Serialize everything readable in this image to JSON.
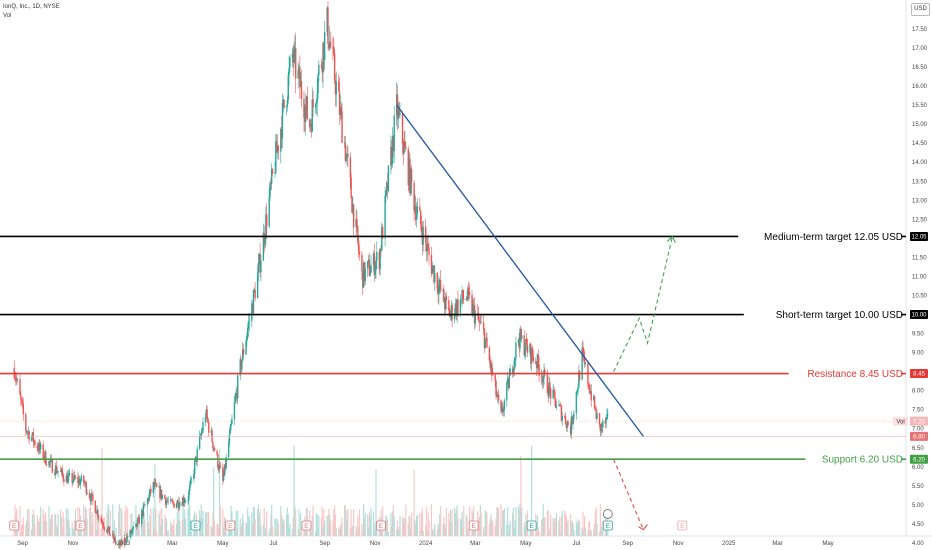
{
  "header": {
    "title": "IonQ, Inc., 1D, NYSE",
    "vol": "Vol",
    "currency": "USD"
  },
  "chart_data": {
    "type": "candlestick",
    "ylim": [
      3.7,
      18.0
    ],
    "yticks": [
      4.0,
      4.5,
      5.0,
      5.5,
      6.0,
      6.5,
      7.0,
      7.5,
      8.0,
      8.5,
      9.0,
      9.5,
      10.0,
      10.5,
      11.0,
      11.5,
      12.0,
      12.5,
      13.0,
      13.5,
      14.0,
      14.5,
      15.0,
      15.5,
      16.0,
      16.5,
      17.0,
      17.5
    ],
    "xticks": [
      {
        "label": "Sep",
        "date": "2022-09"
      },
      {
        "label": "Nov",
        "date": "2022-11"
      },
      {
        "label": "2023",
        "date": "2023-01"
      },
      {
        "label": "Mar",
        "date": "2023-03"
      },
      {
        "label": "May",
        "date": "2023-05"
      },
      {
        "label": "Jul",
        "date": "2023-07"
      },
      {
        "label": "Sep",
        "date": "2023-09"
      },
      {
        "label": "Nov",
        "date": "2023-11"
      },
      {
        "label": "2024",
        "date": "2024-01"
      },
      {
        "label": "Mar",
        "date": "2024-03"
      },
      {
        "label": "May",
        "date": "2024-05"
      },
      {
        "label": "Jul",
        "date": "2024-07"
      },
      {
        "label": "Sep",
        "date": "2024-09"
      },
      {
        "label": "Nov",
        "date": "2024-11"
      },
      {
        "label": "2025",
        "date": "2025-01"
      },
      {
        "label": "Mar",
        "date": "2025-03"
      },
      {
        "label": "May",
        "date": "2025-05"
      }
    ],
    "price_path": [
      [
        "2022-08-22",
        8.6
      ],
      [
        "2022-09-05",
        7.0
      ],
      [
        "2022-10-03",
        6.1
      ],
      [
        "2022-10-24",
        5.7
      ],
      [
        "2022-11-14",
        5.6
      ],
      [
        "2022-12-05",
        4.6
      ],
      [
        "2022-12-26",
        3.9
      ],
      [
        "2023-01-16",
        4.4
      ],
      [
        "2023-02-06",
        5.5
      ],
      [
        "2023-02-27",
        5.0
      ],
      [
        "2023-03-20",
        5.2
      ],
      [
        "2023-04-10",
        7.4
      ],
      [
        "2023-05-01",
        5.6
      ],
      [
        "2023-05-22",
        8.6
      ],
      [
        "2023-06-12",
        11.0
      ],
      [
        "2023-07-03",
        14.0
      ],
      [
        "2023-07-24",
        16.8
      ],
      [
        "2023-08-14",
        15.0
      ],
      [
        "2023-09-04",
        17.6
      ],
      [
        "2023-09-25",
        14.5
      ],
      [
        "2023-10-16",
        11.0
      ],
      [
        "2023-11-06",
        11.5
      ],
      [
        "2023-11-27",
        15.4
      ],
      [
        "2023-12-18",
        13.0
      ],
      [
        "2024-01-08",
        11.3
      ],
      [
        "2024-01-29",
        10.0
      ],
      [
        "2024-02-19",
        10.5
      ],
      [
        "2024-03-11",
        9.5
      ],
      [
        "2024-04-01",
        7.3
      ],
      [
        "2024-04-22",
        9.4
      ],
      [
        "2024-05-13",
        8.8
      ],
      [
        "2024-06-03",
        7.8
      ],
      [
        "2024-06-24",
        7.0
      ],
      [
        "2024-07-08",
        8.9
      ],
      [
        "2024-07-29",
        7.0
      ],
      [
        "2024-08-08",
        7.2
      ]
    ],
    "last_price": 7.2,
    "levels": [
      {
        "name": "Medium-term target",
        "label": "Medium-term target 12.05 USD",
        "value": 12.05,
        "tag": "12.05",
        "color": "#000000"
      },
      {
        "name": "Short-term target",
        "label": "Short-term target 10.00 USD",
        "value": 10.0,
        "tag": "10.00",
        "color": "#000000"
      },
      {
        "name": "Resistance",
        "label": "Resistance 8.45 USD",
        "value": 8.45,
        "tag": "8.45",
        "color": "#e53935"
      },
      {
        "name": "Support",
        "label": "Support 6.20 USD",
        "value": 6.2,
        "tag": "6.20",
        "color": "#43a047"
      }
    ],
    "price_tags": [
      {
        "label": "7.20",
        "value": 7.2,
        "prefix": "Vol",
        "color": "#f5b8b8"
      },
      {
        "label": "6.80",
        "value": 6.8,
        "color": "#e57373"
      }
    ],
    "trendline": {
      "start": [
        "2023-11-27",
        15.5
      ],
      "end": [
        "2024-09-20",
        6.8
      ],
      "color": "#1e53a3"
    },
    "projection_up": [
      [
        "2024-08-15",
        8.5
      ],
      [
        "2024-09-15",
        9.9
      ],
      [
        "2024-09-25",
        9.25
      ],
      [
        "2024-10-25",
        12.05
      ]
    ],
    "projection_down": [
      [
        "2024-08-15",
        6.2
      ],
      [
        "2024-09-20",
        4.35
      ]
    ],
    "events": [
      {
        "date": "2022-08-22",
        "label": "E",
        "kind": "earnings"
      },
      {
        "date": "2022-11-10",
        "label": "E",
        "kind": "earnings"
      },
      {
        "date": "2023-03-29",
        "label": "E",
        "kind": "earnings"
      },
      {
        "date": "2023-05-10",
        "label": "E",
        "kind": "earnings"
      },
      {
        "date": "2023-08-10",
        "label": "E",
        "kind": "earnings"
      },
      {
        "date": "2023-11-08",
        "label": "E",
        "kind": "earnings"
      },
      {
        "date": "2024-02-28",
        "label": "E",
        "kind": "earnings"
      },
      {
        "date": "2024-05-08",
        "label": "E",
        "kind": "earnings"
      },
      {
        "date": "2024-08-08",
        "label": "E",
        "kind": "earnings"
      },
      {
        "date": "2024-11-06",
        "label": "E",
        "kind": "earnings-upcoming"
      }
    ]
  }
}
